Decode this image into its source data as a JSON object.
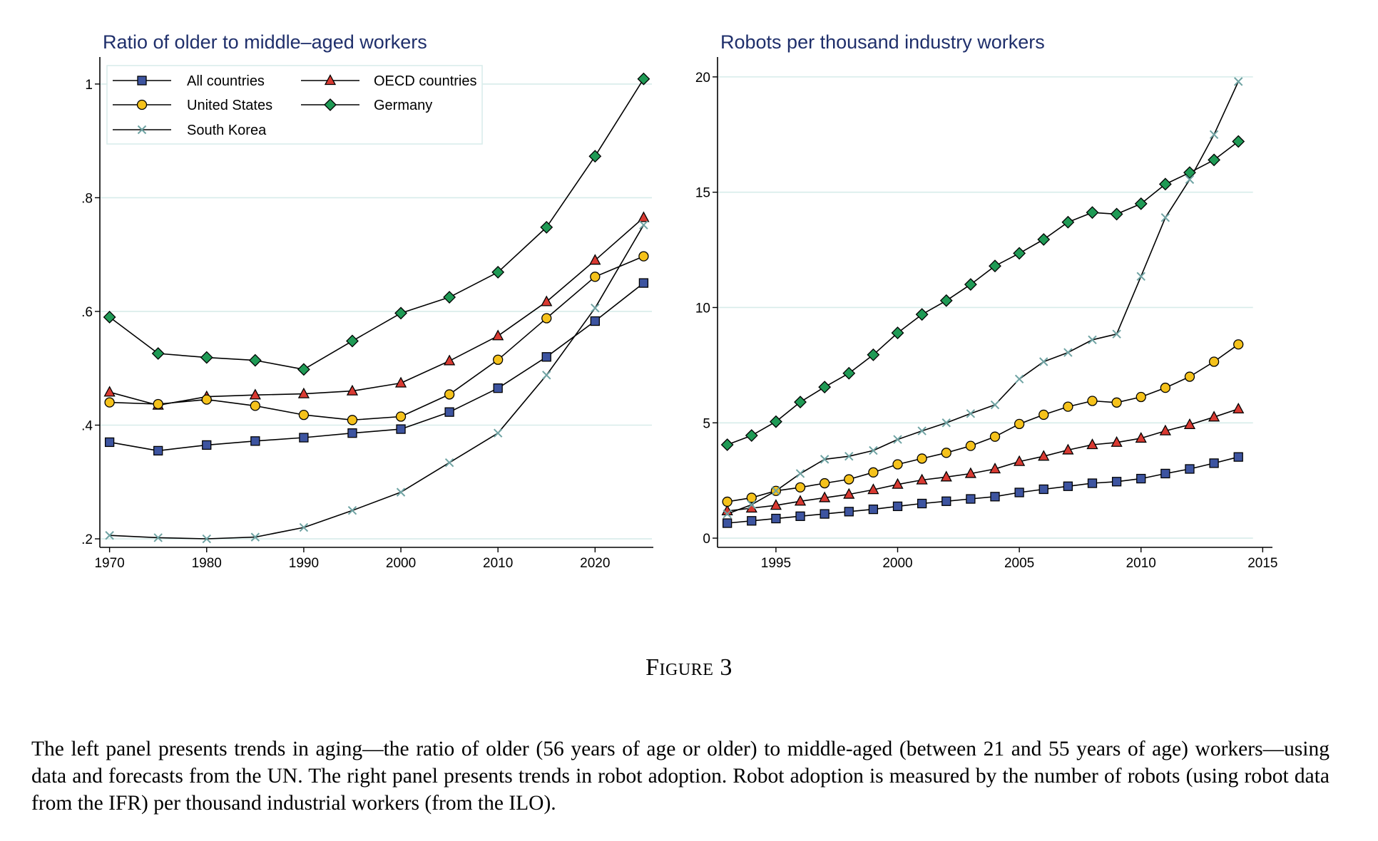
{
  "figure": {
    "label": "Figure 3",
    "caption": "The left panel presents trends in aging—the ratio of older (56 years of age or older) to middle-aged (between 21 and 55 years of age) workers—using data and forecasts from the UN. The right panel presents trends in robot adoption. Robot adoption is measured by the number of robots (using robot data from the IFR) per thousand industrial workers (from the ILO)."
  },
  "colors": {
    "All countries": "#3d54a0",
    "OECD countries": "#d93a32",
    "United States": "#f5c21b",
    "Germany": "#1f9a55",
    "South Korea": "#6fa3a3",
    "grid": "#d7ecea",
    "title": "#1f2f6b"
  },
  "markers": {
    "All countries": "square",
    "OECD countries": "triangle",
    "United States": "circle",
    "Germany": "diamond",
    "South Korea": "x"
  },
  "chart_data": [
    {
      "type": "line",
      "title": "Ratio of older to middle–aged workers",
      "xlabel": "",
      "ylabel": "",
      "xlim": [
        1969,
        2026
      ],
      "ylim": [
        0.185,
        1.045
      ],
      "xticks": [
        1970,
        1980,
        1990,
        2000,
        2010,
        2020
      ],
      "yticks": [
        0.2,
        0.4,
        0.6,
        0.8,
        1
      ],
      "ytick_labels": [
        ".2",
        ".4",
        ".6",
        ".8",
        "1"
      ],
      "grid": true,
      "legend": {
        "position": "top-left",
        "columns": 2,
        "order": [
          "All countries",
          "OECD countries",
          "United States",
          "Germany",
          "South Korea"
        ]
      },
      "x": [
        1970,
        1975,
        1980,
        1985,
        1990,
        1995,
        2000,
        2005,
        2010,
        2015,
        2020,
        2025
      ],
      "series": [
        {
          "name": "All countries",
          "values": [
            0.37,
            0.355,
            0.365,
            0.372,
            0.378,
            0.386,
            0.393,
            0.423,
            0.465,
            0.52,
            0.583,
            0.65
          ]
        },
        {
          "name": "OECD countries",
          "values": [
            0.458,
            0.435,
            0.45,
            0.453,
            0.455,
            0.46,
            0.474,
            0.513,
            0.557,
            0.617,
            0.69,
            0.765
          ]
        },
        {
          "name": "United States",
          "values": [
            0.44,
            0.437,
            0.445,
            0.434,
            0.418,
            0.409,
            0.415,
            0.454,
            0.515,
            0.588,
            0.661,
            0.697
          ]
        },
        {
          "name": "Germany",
          "values": [
            0.59,
            0.526,
            0.519,
            0.514,
            0.498,
            0.548,
            0.597,
            0.625,
            0.669,
            0.748,
            0.873,
            1.009
          ]
        },
        {
          "name": "South Korea",
          "values": [
            0.206,
            0.202,
            0.2,
            0.203,
            0.22,
            0.25,
            0.282,
            0.334,
            0.386,
            0.488,
            0.606,
            0.752
          ]
        }
      ]
    },
    {
      "type": "line",
      "title": "Robots per thousand industry workers",
      "xlabel": "",
      "ylabel": "",
      "xlim": [
        1992.6,
        2015.4
      ],
      "ylim": [
        -0.4,
        20.8
      ],
      "xticks": [
        1995,
        2000,
        2005,
        2010,
        2015
      ],
      "yticks": [
        0,
        5,
        10,
        15,
        20
      ],
      "ytick_labels": [
        "0",
        "5",
        "10",
        "15",
        "20"
      ],
      "grid": true,
      "x": [
        1993,
        1994,
        1995,
        1996,
        1997,
        1998,
        1999,
        2000,
        2001,
        2002,
        2003,
        2004,
        2005,
        2006,
        2007,
        2008,
        2009,
        2010,
        2011,
        2012,
        2013,
        2014
      ],
      "series": [
        {
          "name": "All countries",
          "values": [
            0.65,
            0.75,
            0.85,
            0.95,
            1.05,
            1.15,
            1.25,
            1.38,
            1.5,
            1.6,
            1.7,
            1.8,
            1.98,
            2.12,
            2.25,
            2.38,
            2.45,
            2.58,
            2.8,
            3.0,
            3.25,
            3.52
          ]
        },
        {
          "name": "OECD countries",
          "values": [
            1.18,
            1.3,
            1.42,
            1.6,
            1.75,
            1.9,
            2.1,
            2.33,
            2.52,
            2.65,
            2.8,
            3.0,
            3.32,
            3.55,
            3.82,
            4.05,
            4.15,
            4.33,
            4.65,
            4.92,
            5.25,
            5.6
          ]
        },
        {
          "name": "United States",
          "values": [
            1.58,
            1.75,
            2.05,
            2.2,
            2.38,
            2.55,
            2.85,
            3.2,
            3.45,
            3.7,
            4.0,
            4.4,
            4.95,
            5.35,
            5.7,
            5.95,
            5.88,
            6.12,
            6.52,
            7.0,
            7.65,
            8.4
          ]
        },
        {
          "name": "Germany",
          "values": [
            4.05,
            4.45,
            5.05,
            5.9,
            6.55,
            7.15,
            7.95,
            8.9,
            9.7,
            10.3,
            11.0,
            11.8,
            12.35,
            12.95,
            13.7,
            14.12,
            14.05,
            14.5,
            15.35,
            15.85,
            16.4,
            17.2
          ]
        },
        {
          "name": "South Korea",
          "values": [
            1.05,
            1.45,
            2.05,
            2.8,
            3.42,
            3.55,
            3.8,
            4.28,
            4.65,
            5.0,
            5.4,
            5.78,
            6.9,
            7.65,
            8.05,
            8.6,
            8.85,
            11.35,
            13.9,
            15.55,
            17.5,
            19.8
          ]
        }
      ]
    }
  ]
}
